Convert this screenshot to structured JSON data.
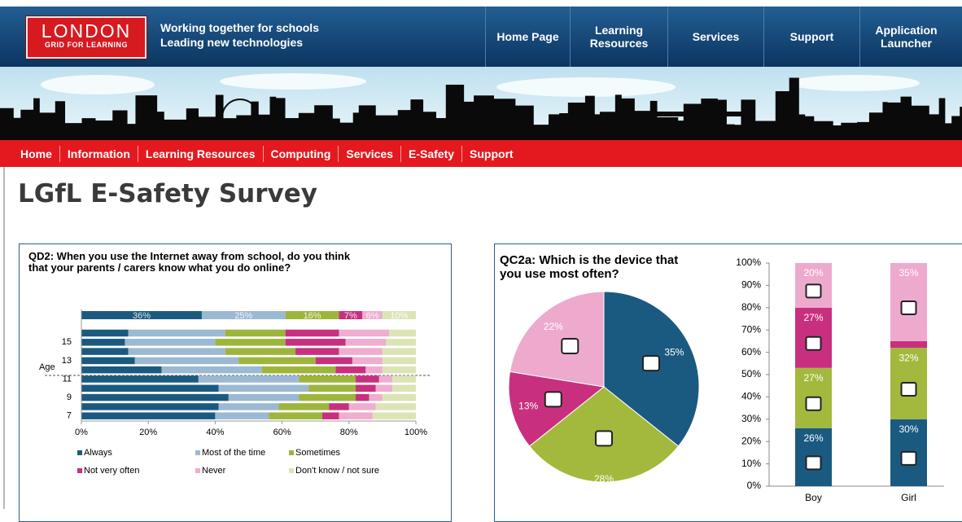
{
  "header": {
    "logo": "LONDON",
    "logo_sub": "GRID FOR LEARNING",
    "tagline": [
      "Working together for schools",
      "Leading new technologies"
    ],
    "nav": [
      "Home Page",
      "Learning Resources",
      "Services",
      "Support",
      "Application Launcher"
    ]
  },
  "subnav": [
    "Home",
    "Information",
    "Learning Resources",
    "Computing",
    "Services",
    "E-Safety",
    "Support"
  ],
  "page_title": "LGfL E-Safety Survey",
  "chart_data": [
    {
      "type": "bar",
      "orientation": "horizontal",
      "stacked": true,
      "title": "QD2: When you use the Internet away from school, do you think that your parents / carers know what you do online?",
      "y_label": "Age",
      "categories": [
        null,
        null,
        15,
        null,
        13,
        null,
        11,
        null,
        9,
        null,
        7
      ],
      "xlim": [
        0,
        100
      ],
      "xticks": [
        {
          "value": 0,
          "label": "0%"
        },
        {
          "value": 20,
          "label": "20%"
        },
        {
          "value": 40,
          "label": "40%"
        },
        {
          "value": 60,
          "label": "60%"
        },
        {
          "value": 80,
          "label": "80%"
        },
        {
          "value": 100,
          "label": "100%"
        }
      ],
      "series": [
        {
          "name": "Always",
          "color": "#1b5a80",
          "values": [
            36,
            14,
            13,
            14,
            16,
            24,
            35,
            41,
            44,
            41,
            40
          ],
          "value_labels": [
            "36%",
            null,
            null,
            null,
            null,
            null,
            null,
            null,
            null,
            null,
            null
          ]
        },
        {
          "name": "Most of the time",
          "color": "#9bb9d2",
          "values": [
            25,
            29,
            27,
            29,
            31,
            30,
            30,
            27,
            21,
            18,
            16
          ],
          "value_labels": [
            "25%",
            null,
            null,
            null,
            null,
            null,
            null,
            null,
            null,
            null,
            null
          ]
        },
        {
          "name": "Sometimes",
          "color": "#9db53b",
          "values": [
            16,
            18,
            21,
            21,
            23,
            22,
            17,
            14,
            17,
            15,
            16
          ],
          "value_labels": [
            "16%",
            null,
            null,
            null,
            null,
            null,
            null,
            null,
            null,
            null,
            null
          ]
        },
        {
          "name": "Not very often",
          "color": "#c8307f",
          "values": [
            7,
            16,
            18,
            13,
            11,
            9,
            7,
            6,
            4,
            6,
            5
          ],
          "value_labels": [
            "7%",
            null,
            null,
            null,
            null,
            null,
            null,
            null,
            null,
            null,
            null
          ]
        },
        {
          "name": "Never",
          "color": "#efadd0",
          "values": [
            6,
            15,
            12,
            13,
            9,
            5,
            4,
            5,
            4,
            8,
            10
          ],
          "value_labels": [
            "6%",
            null,
            null,
            null,
            null,
            null,
            null,
            null,
            null,
            null,
            null
          ]
        },
        {
          "name": "Don't know / not sure",
          "color": "#dce4b6",
          "values": [
            10,
            8,
            9,
            10,
            10,
            10,
            7,
            7,
            10,
            12,
            13
          ],
          "value_labels": [
            "10%",
            null,
            null,
            null,
            null,
            null,
            null,
            null,
            null,
            null,
            null
          ]
        }
      ]
    },
    {
      "type": "pie",
      "title": "QC2a: Which is the device that you use most often?",
      "values": [
        35,
        28,
        13,
        22
      ],
      "value_labels": [
        "35%",
        "28%",
        "13%",
        "22%"
      ],
      "colors": [
        "#1b5a80",
        "#a2b93d",
        "#c8307f",
        "#eeaacd"
      ]
    },
    {
      "type": "bar",
      "stacked": true,
      "categories": [
        "Boy",
        "Girl"
      ],
      "ylim": [
        0,
        100
      ],
      "yticks": [
        {
          "value": 0,
          "label": "0%"
        },
        {
          "value": 10,
          "label": "10%"
        },
        {
          "value": 20,
          "label": "20%"
        },
        {
          "value": 30,
          "label": "30%"
        },
        {
          "value": 40,
          "label": "40%"
        },
        {
          "value": 50,
          "label": "50%"
        },
        {
          "value": 60,
          "label": "60%"
        },
        {
          "value": 70,
          "label": "70%"
        },
        {
          "value": 80,
          "label": "80%"
        },
        {
          "value": 90,
          "label": "90%"
        },
        {
          "value": 100,
          "label": "100%"
        }
      ],
      "series": [
        {
          "color": "#1b5a80",
          "values": [
            26,
            30
          ],
          "value_labels": [
            "26%",
            "30%"
          ]
        },
        {
          "color": "#a2b93d",
          "values": [
            27,
            32
          ],
          "value_labels": [
            "27%",
            "32%"
          ]
        },
        {
          "color": "#c8307f",
          "values": [
            27,
            3
          ],
          "value_labels": [
            "27%",
            null
          ]
        },
        {
          "color": "#eeaacd",
          "values": [
            20,
            35
          ],
          "value_labels": [
            "20%",
            "35%"
          ]
        }
      ]
    }
  ]
}
